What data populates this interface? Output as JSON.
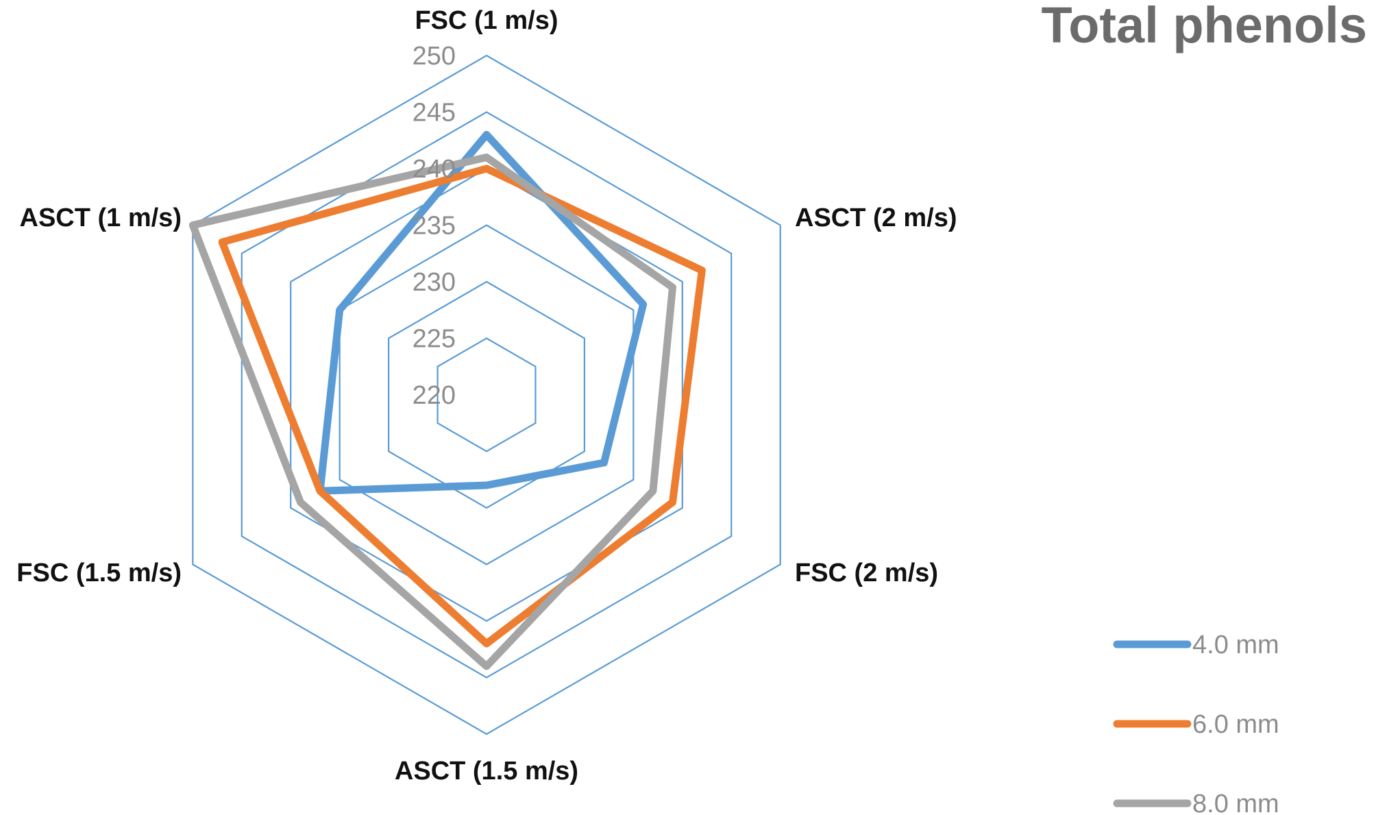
{
  "chart_data": {
    "type": "radar",
    "title": "Total phenols",
    "categories": [
      "FSC  (1 m/s)",
      "ASCT (2 m/s)",
      "FSC (2 m/s)",
      "ASCT (1.5 m/s)",
      "FSC (1.5 m/s)",
      "ASCT (1 m/s)"
    ],
    "ticks": [
      220,
      225,
      230,
      235,
      240,
      245,
      250
    ],
    "tick_labels": [
      "220",
      "225",
      "230",
      "235",
      "240",
      "245",
      "250"
    ],
    "range": [
      220,
      250
    ],
    "grid": true,
    "legend_position": "bottom-right",
    "series": [
      {
        "name": "4.0 mm",
        "color": "#5b9bd5",
        "values": [
          243,
          236,
          232,
          228,
          237,
          235
        ]
      },
      {
        "name": "6.0 mm",
        "color": "#ed7d31",
        "values": [
          240,
          242,
          239,
          242,
          237,
          247
        ]
      },
      {
        "name": "8.0 mm",
        "color": "#a5a5a5",
        "values": [
          241,
          239,
          237,
          244,
          239,
          250
        ]
      }
    ],
    "grid_color": "#5b9bd5"
  }
}
